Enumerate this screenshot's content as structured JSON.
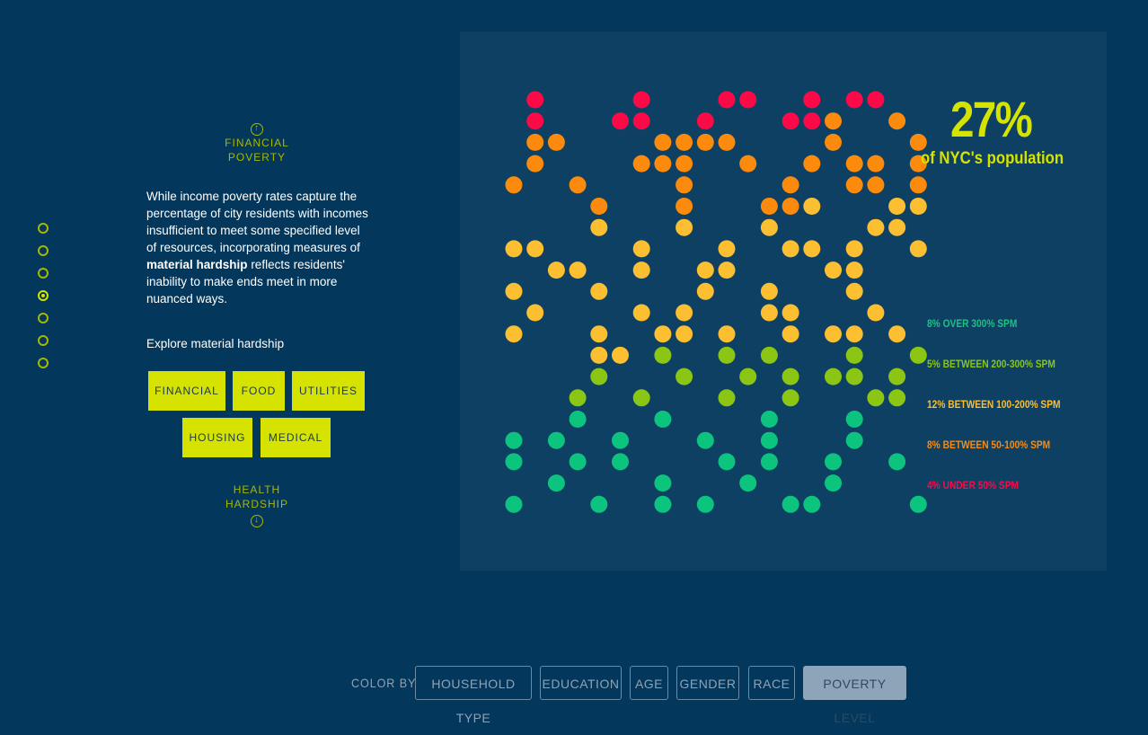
{
  "nav": {
    "prev_label_1": "FINANCIAL",
    "prev_label_2": "POVERTY",
    "next_label_1": "HEALTH",
    "next_label_2": "HARDSHIP",
    "up_arrow": "↑",
    "down_arrow": "↓"
  },
  "text": {
    "p1": "While income poverty rates capture the percentage of city residents with incomes insufficient to meet some specified level of resources, incorporating measures of ",
    "bold1": "material",
    "bold2": "hardship",
    "p2": " reflects residents' inability to make ends meet in more nuanced ways.",
    "explore": "Explore material hardship"
  },
  "hardship_buttons": [
    "FINANCIAL",
    "FOOD",
    "UTILITIES",
    "HOUSING",
    "MEDICAL"
  ],
  "stat": {
    "percent": "27%",
    "caption": "of NYC's population"
  },
  "legend": [
    {
      "label": "8% OVER 300% SPM",
      "color": "#1ec184"
    },
    {
      "label": "5% BETWEEN 200-300% SPM",
      "color": "#8cc614"
    },
    {
      "label": "12% BETWEEN 100-200% SPM",
      "color": "#fbbf31"
    },
    {
      "label": "8% BETWEEN 50-100% SPM",
      "color": "#fc8a0c"
    },
    {
      "label": "4% UNDER 50% SPM",
      "color": "#fc0a48"
    }
  ],
  "colors": {
    "red": "#fc0a48",
    "orange": "#fc8a0c",
    "yellow": "#fbbf31",
    "lime": "#8cc614",
    "green": "#0dc47e",
    "accent": "#d6e300"
  },
  "color_by": {
    "label": "COLOR BY",
    "options": [
      "HOUSEHOLD TYPE",
      "EDUCATION",
      "AGE",
      "GENDER",
      "RACE",
      "POVERTY LEVEL"
    ],
    "selected": "POVERTY LEVEL"
  },
  "chart_data": {
    "type": "scatter",
    "columns": 20,
    "rows": 20,
    "points": [
      [
        1,
        0,
        "red"
      ],
      [
        6,
        0,
        "red"
      ],
      [
        10,
        0,
        "red"
      ],
      [
        11,
        0,
        "red"
      ],
      [
        14,
        0,
        "red"
      ],
      [
        16,
        0,
        "red"
      ],
      [
        17,
        0,
        "red"
      ],
      [
        1,
        1,
        "red"
      ],
      [
        5,
        1,
        "red"
      ],
      [
        6,
        1,
        "red"
      ],
      [
        9,
        1,
        "red"
      ],
      [
        13,
        1,
        "red"
      ],
      [
        14,
        1,
        "red"
      ],
      [
        15,
        1,
        "orange"
      ],
      [
        18,
        1,
        "orange"
      ],
      [
        1,
        2,
        "orange"
      ],
      [
        2,
        2,
        "orange"
      ],
      [
        7,
        2,
        "orange"
      ],
      [
        8,
        2,
        "orange"
      ],
      [
        9,
        2,
        "orange"
      ],
      [
        10,
        2,
        "orange"
      ],
      [
        15,
        2,
        "orange"
      ],
      [
        19,
        2,
        "orange"
      ],
      [
        1,
        3,
        "orange"
      ],
      [
        6,
        3,
        "orange"
      ],
      [
        7,
        3,
        "orange"
      ],
      [
        8,
        3,
        "orange"
      ],
      [
        11,
        3,
        "orange"
      ],
      [
        14,
        3,
        "orange"
      ],
      [
        16,
        3,
        "orange"
      ],
      [
        17,
        3,
        "orange"
      ],
      [
        19,
        3,
        "orange"
      ],
      [
        0,
        4,
        "orange"
      ],
      [
        3,
        4,
        "orange"
      ],
      [
        8,
        4,
        "orange"
      ],
      [
        13,
        4,
        "orange"
      ],
      [
        16,
        4,
        "orange"
      ],
      [
        17,
        4,
        "orange"
      ],
      [
        19,
        4,
        "orange"
      ],
      [
        4,
        5,
        "orange"
      ],
      [
        8,
        5,
        "orange"
      ],
      [
        12,
        5,
        "orange"
      ],
      [
        13,
        5,
        "orange"
      ],
      [
        14,
        5,
        "yellow"
      ],
      [
        18,
        5,
        "yellow"
      ],
      [
        19,
        5,
        "yellow"
      ],
      [
        4,
        6,
        "yellow"
      ],
      [
        8,
        6,
        "yellow"
      ],
      [
        12,
        6,
        "yellow"
      ],
      [
        17,
        6,
        "yellow"
      ],
      [
        18,
        6,
        "yellow"
      ],
      [
        0,
        7,
        "yellow"
      ],
      [
        1,
        7,
        "yellow"
      ],
      [
        6,
        7,
        "yellow"
      ],
      [
        10,
        7,
        "yellow"
      ],
      [
        13,
        7,
        "yellow"
      ],
      [
        14,
        7,
        "yellow"
      ],
      [
        16,
        7,
        "yellow"
      ],
      [
        19,
        7,
        "yellow"
      ],
      [
        2,
        8,
        "yellow"
      ],
      [
        3,
        8,
        "yellow"
      ],
      [
        6,
        8,
        "yellow"
      ],
      [
        9,
        8,
        "yellow"
      ],
      [
        10,
        8,
        "yellow"
      ],
      [
        15,
        8,
        "yellow"
      ],
      [
        16,
        8,
        "yellow"
      ],
      [
        0,
        9,
        "yellow"
      ],
      [
        4,
        9,
        "yellow"
      ],
      [
        9,
        9,
        "yellow"
      ],
      [
        12,
        9,
        "yellow"
      ],
      [
        16,
        9,
        "yellow"
      ],
      [
        1,
        10,
        "yellow"
      ],
      [
        6,
        10,
        "yellow"
      ],
      [
        8,
        10,
        "yellow"
      ],
      [
        12,
        10,
        "yellow"
      ],
      [
        13,
        10,
        "yellow"
      ],
      [
        17,
        10,
        "yellow"
      ],
      [
        0,
        11,
        "yellow"
      ],
      [
        4,
        11,
        "yellow"
      ],
      [
        7,
        11,
        "yellow"
      ],
      [
        8,
        11,
        "yellow"
      ],
      [
        10,
        11,
        "yellow"
      ],
      [
        13,
        11,
        "yellow"
      ],
      [
        15,
        11,
        "yellow"
      ],
      [
        16,
        11,
        "yellow"
      ],
      [
        18,
        11,
        "yellow"
      ],
      [
        4,
        12,
        "yellow"
      ],
      [
        5,
        12,
        "yellow"
      ],
      [
        7,
        12,
        "lime"
      ],
      [
        10,
        12,
        "lime"
      ],
      [
        12,
        12,
        "lime"
      ],
      [
        16,
        12,
        "lime"
      ],
      [
        19,
        12,
        "lime"
      ],
      [
        4,
        13,
        "lime"
      ],
      [
        8,
        13,
        "lime"
      ],
      [
        11,
        13,
        "lime"
      ],
      [
        13,
        13,
        "lime"
      ],
      [
        15,
        13,
        "lime"
      ],
      [
        16,
        13,
        "lime"
      ],
      [
        18,
        13,
        "lime"
      ],
      [
        3,
        14,
        "lime"
      ],
      [
        6,
        14,
        "lime"
      ],
      [
        10,
        14,
        "lime"
      ],
      [
        13,
        14,
        "lime"
      ],
      [
        17,
        14,
        "lime"
      ],
      [
        18,
        14,
        "lime"
      ],
      [
        3,
        15,
        "green"
      ],
      [
        7,
        15,
        "green"
      ],
      [
        12,
        15,
        "green"
      ],
      [
        16,
        15,
        "green"
      ],
      [
        0,
        16,
        "green"
      ],
      [
        2,
        16,
        "green"
      ],
      [
        5,
        16,
        "green"
      ],
      [
        9,
        16,
        "green"
      ],
      [
        12,
        16,
        "green"
      ],
      [
        16,
        16,
        "green"
      ],
      [
        0,
        17,
        "green"
      ],
      [
        3,
        17,
        "green"
      ],
      [
        5,
        17,
        "green"
      ],
      [
        10,
        17,
        "green"
      ],
      [
        12,
        17,
        "green"
      ],
      [
        15,
        17,
        "green"
      ],
      [
        18,
        17,
        "green"
      ],
      [
        2,
        18,
        "green"
      ],
      [
        7,
        18,
        "green"
      ],
      [
        11,
        18,
        "green"
      ],
      [
        15,
        18,
        "green"
      ],
      [
        0,
        19,
        "green"
      ],
      [
        4,
        19,
        "green"
      ],
      [
        7,
        19,
        "green"
      ],
      [
        9,
        19,
        "green"
      ],
      [
        13,
        19,
        "green"
      ],
      [
        14,
        19,
        "green"
      ],
      [
        19,
        19,
        "green"
      ]
    ]
  }
}
